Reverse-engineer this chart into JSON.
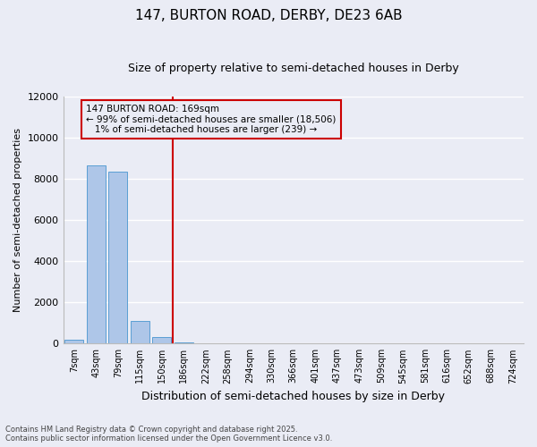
{
  "title": "147, BURTON ROAD, DERBY, DE23 6AB",
  "subtitle": "Size of property relative to semi-detached houses in Derby",
  "xlabel": "Distribution of semi-detached houses by size in Derby",
  "ylabel": "Number of semi-detached properties",
  "categories": [
    "7sqm",
    "43sqm",
    "79sqm",
    "115sqm",
    "150sqm",
    "186sqm",
    "222sqm",
    "258sqm",
    "294sqm",
    "330sqm",
    "366sqm",
    "401sqm",
    "437sqm",
    "473sqm",
    "509sqm",
    "545sqm",
    "581sqm",
    "616sqm",
    "652sqm",
    "688sqm",
    "724sqm"
  ],
  "values": [
    200,
    8650,
    8350,
    1100,
    310,
    70,
    0,
    0,
    0,
    0,
    0,
    0,
    0,
    0,
    0,
    0,
    0,
    0,
    0,
    0,
    0
  ],
  "bar_color": "#aec6e8",
  "bar_edge_color": "#5a9fd4",
  "vline_x": 4.5,
  "vline_color": "#cc0000",
  "annotation_line1": "147 BURTON ROAD: 169sqm",
  "annotation_line2": "← 99% of semi-detached houses are smaller (18,506)",
  "annotation_line3": "   1% of semi-detached houses are larger (239) →",
  "annotation_box_color": "#cc0000",
  "ylim": [
    0,
    12000
  ],
  "yticks": [
    0,
    2000,
    4000,
    6000,
    8000,
    10000,
    12000
  ],
  "background_color": "#eaecf5",
  "grid_color": "#ffffff",
  "footer_text": "Contains HM Land Registry data © Crown copyright and database right 2025.\nContains public sector information licensed under the Open Government Licence v3.0.",
  "title_fontsize": 11,
  "subtitle_fontsize": 9,
  "xlabel_fontsize": 9,
  "ylabel_fontsize": 8,
  "annotation_fontsize": 7.5,
  "footer_fontsize": 6
}
